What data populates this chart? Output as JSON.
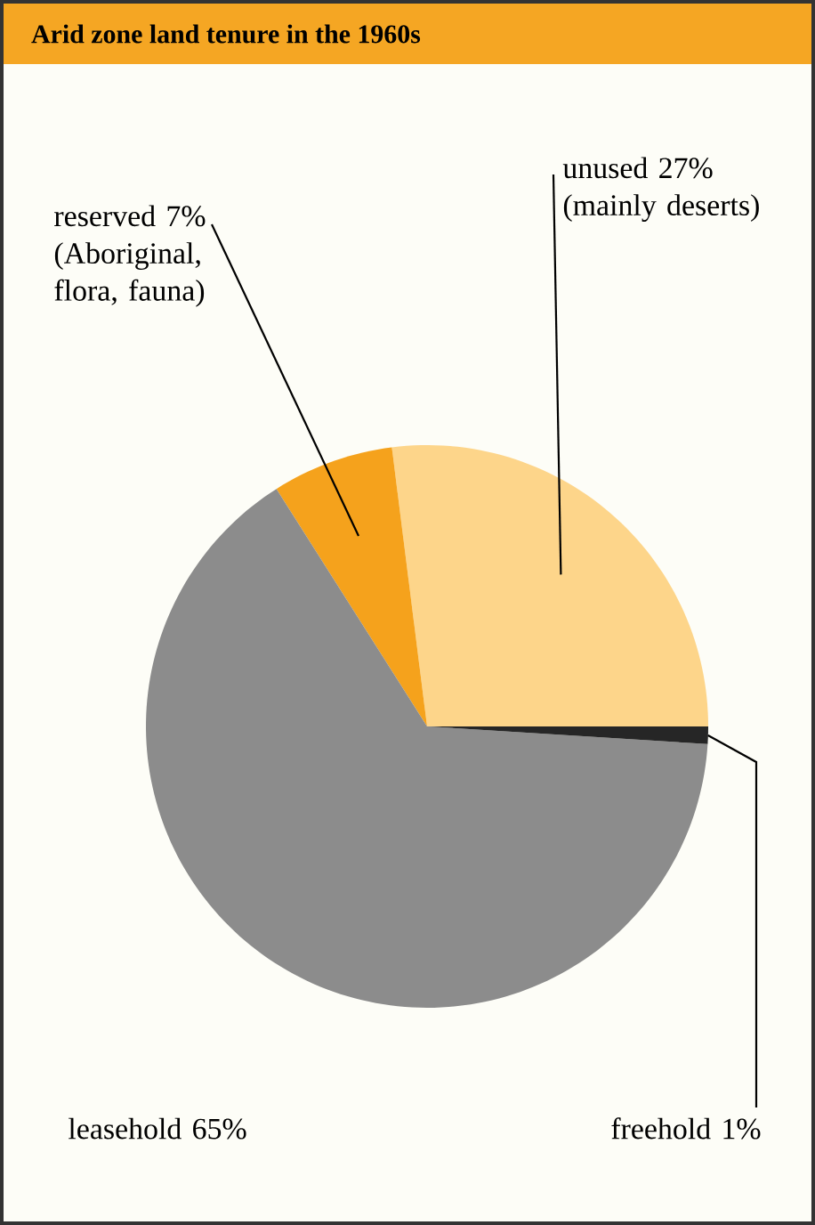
{
  "chart_data": {
    "type": "pie",
    "title": "Arid zone land tenure in the 1960s",
    "categories": [
      "unused",
      "reserved",
      "leasehold",
      "freehold"
    ],
    "values": [
      27,
      7,
      65,
      1
    ],
    "value_labels": [
      "27%",
      "7%",
      "65%",
      "1%"
    ],
    "colors": [
      "#fdd58a",
      "#f5a21c",
      "#8c8c8c",
      "#262626"
    ],
    "annotations": [
      {
        "text": "(mainly deserts)",
        "x": "unused"
      },
      {
        "text": "(Aboriginal, flora, fauna)",
        "x": "reserved"
      }
    ],
    "legend": false
  }
}
